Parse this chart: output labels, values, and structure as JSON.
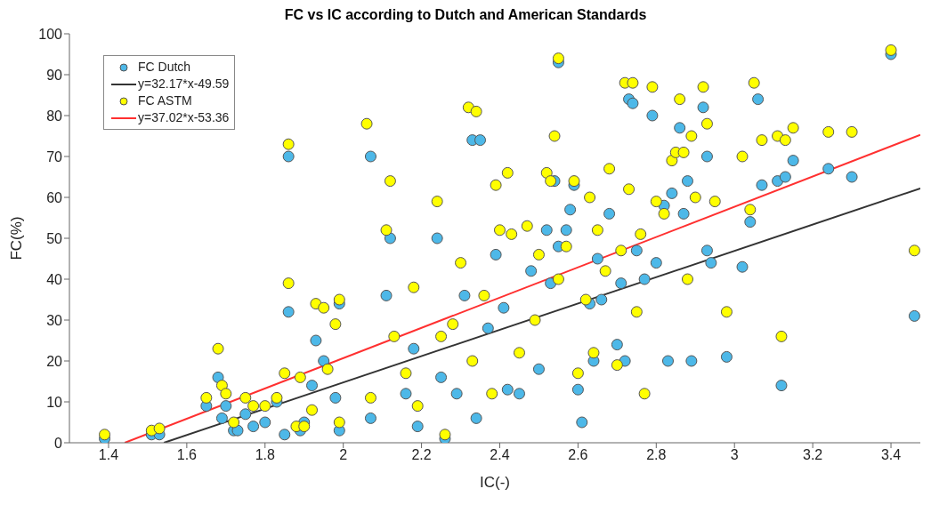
{
  "chart_data": {
    "type": "scatter",
    "title": "FC vs IC according to Dutch and American Standards",
    "xlabel": "IC(-)",
    "ylabel": "FC(%)",
    "xlim": [
      1.3,
      3.475
    ],
    "xticks": [
      1.4,
      1.6,
      1.8,
      2,
      2.2,
      2.4,
      2.6,
      2.8,
      3,
      3.2,
      3.4
    ],
    "ylim": [
      0,
      100
    ],
    "yticks": [
      0,
      10,
      20,
      30,
      40,
      50,
      60,
      70,
      80,
      90,
      100
    ],
    "grid": false,
    "legend": "top left",
    "marker": "circle",
    "series": [
      {
        "name": "FC Dutch",
        "color": "#4db8e8",
        "x": [
          1.39,
          1.51,
          1.53,
          1.65,
          1.68,
          1.69,
          1.7,
          1.72,
          1.73,
          1.75,
          1.77,
          1.8,
          1.83,
          1.85,
          1.86,
          1.86,
          1.89,
          1.9,
          1.92,
          1.93,
          1.95,
          1.98,
          1.99,
          1.99,
          2.07,
          2.07,
          2.11,
          2.12,
          2.16,
          2.18,
          2.19,
          2.24,
          2.25,
          2.26,
          2.29,
          2.31,
          2.33,
          2.35,
          2.34,
          2.37,
          2.39,
          2.41,
          2.42,
          2.45,
          2.48,
          2.5,
          2.52,
          2.53,
          2.54,
          2.55,
          2.55,
          2.57,
          2.58,
          2.59,
          2.6,
          2.61,
          2.63,
          2.64,
          2.65,
          2.66,
          2.68,
          2.7,
          2.71,
          2.72,
          2.73,
          2.74,
          2.75,
          2.77,
          2.79,
          2.8,
          2.82,
          2.83,
          2.84,
          2.86,
          2.87,
          2.88,
          2.89,
          2.92,
          2.93,
          2.93,
          2.94,
          2.98,
          3.02,
          3.04,
          3.06,
          3.07,
          3.11,
          3.13,
          3.12,
          3.15,
          3.24,
          3.3,
          3.4,
          3.46
        ],
        "values": [
          1,
          2,
          2,
          9,
          16,
          6,
          9,
          3,
          3,
          7,
          4,
          5,
          10,
          2,
          70,
          32,
          3,
          5,
          14,
          25,
          20,
          11,
          34,
          3,
          6,
          70,
          36,
          50,
          12,
          23,
          4,
          50,
          16,
          1,
          12,
          36,
          74,
          74,
          6,
          28,
          46,
          33,
          13,
          12,
          42,
          18,
          52,
          39,
          64,
          93,
          48,
          52,
          57,
          63,
          13,
          5,
          34,
          20,
          45,
          35,
          56,
          24,
          39,
          20,
          84,
          83,
          47,
          40,
          80,
          44,
          58,
          20,
          61,
          77,
          56,
          64,
          20,
          82,
          70,
          47,
          44,
          21,
          43,
          54,
          84,
          63,
          64,
          65,
          14,
          69,
          67,
          65,
          95,
          31
        ]
      },
      {
        "name": "y=32.17*x-49.59",
        "type": "line",
        "marker": "none",
        "color": "#333333",
        "x": [
          1.5415,
          3.475
        ],
        "values": [
          0,
          62.2
        ]
      },
      {
        "name": "FC ASTM",
        "color": "#ffff00",
        "x": [
          1.39,
          1.51,
          1.53,
          1.65,
          1.68,
          1.69,
          1.7,
          1.72,
          1.75,
          1.77,
          1.8,
          1.83,
          1.85,
          1.86,
          1.86,
          1.88,
          1.89,
          1.9,
          1.92,
          1.93,
          1.95,
          1.96,
          1.98,
          1.99,
          1.99,
          2.06,
          2.07,
          2.11,
          2.12,
          2.13,
          2.16,
          2.18,
          2.19,
          2.24,
          2.25,
          2.26,
          2.28,
          2.3,
          2.32,
          2.34,
          2.33,
          2.36,
          2.38,
          2.39,
          2.4,
          2.42,
          2.43,
          2.45,
          2.47,
          2.49,
          2.5,
          2.52,
          2.53,
          2.54,
          2.55,
          2.55,
          2.57,
          2.59,
          2.6,
          2.62,
          2.63,
          2.64,
          2.65,
          2.67,
          2.68,
          2.7,
          2.71,
          2.72,
          2.74,
          2.73,
          2.75,
          2.76,
          2.77,
          2.79,
          2.8,
          2.82,
          2.84,
          2.85,
          2.86,
          2.87,
          2.88,
          2.89,
          2.9,
          2.92,
          2.93,
          2.95,
          2.98,
          3.02,
          3.04,
          3.05,
          3.07,
          3.11,
          3.12,
          3.13,
          3.15,
          3.24,
          3.3,
          3.4,
          3.46
        ],
        "values": [
          2,
          3,
          3.5,
          11,
          23,
          14,
          12,
          5,
          11,
          9,
          9,
          11,
          17,
          73,
          39,
          4,
          16,
          4,
          8,
          34,
          33,
          18,
          29,
          35,
          5,
          78,
          11,
          52,
          64,
          26,
          17,
          38,
          9,
          59,
          26,
          2,
          29,
          44,
          82,
          81,
          20,
          36,
          12,
          63,
          52,
          66,
          51,
          22,
          53,
          30,
          46,
          66,
          64,
          75,
          94,
          40,
          48,
          64,
          17,
          35,
          60,
          22,
          52,
          42,
          67,
          19,
          47,
          88,
          88,
          62,
          32,
          51,
          12,
          87,
          59,
          56,
          69,
          71,
          84,
          71,
          40,
          75,
          60,
          87,
          78,
          59,
          32,
          70,
          57,
          88,
          74,
          75,
          26,
          74,
          77,
          76,
          76,
          96,
          47
        ]
      },
      {
        "name": "y=37.02*x-53.36",
        "type": "line",
        "marker": "none",
        "color": "#ff3030",
        "x": [
          1.4414,
          3.475
        ],
        "values": [
          0,
          75.3
        ]
      }
    ]
  }
}
